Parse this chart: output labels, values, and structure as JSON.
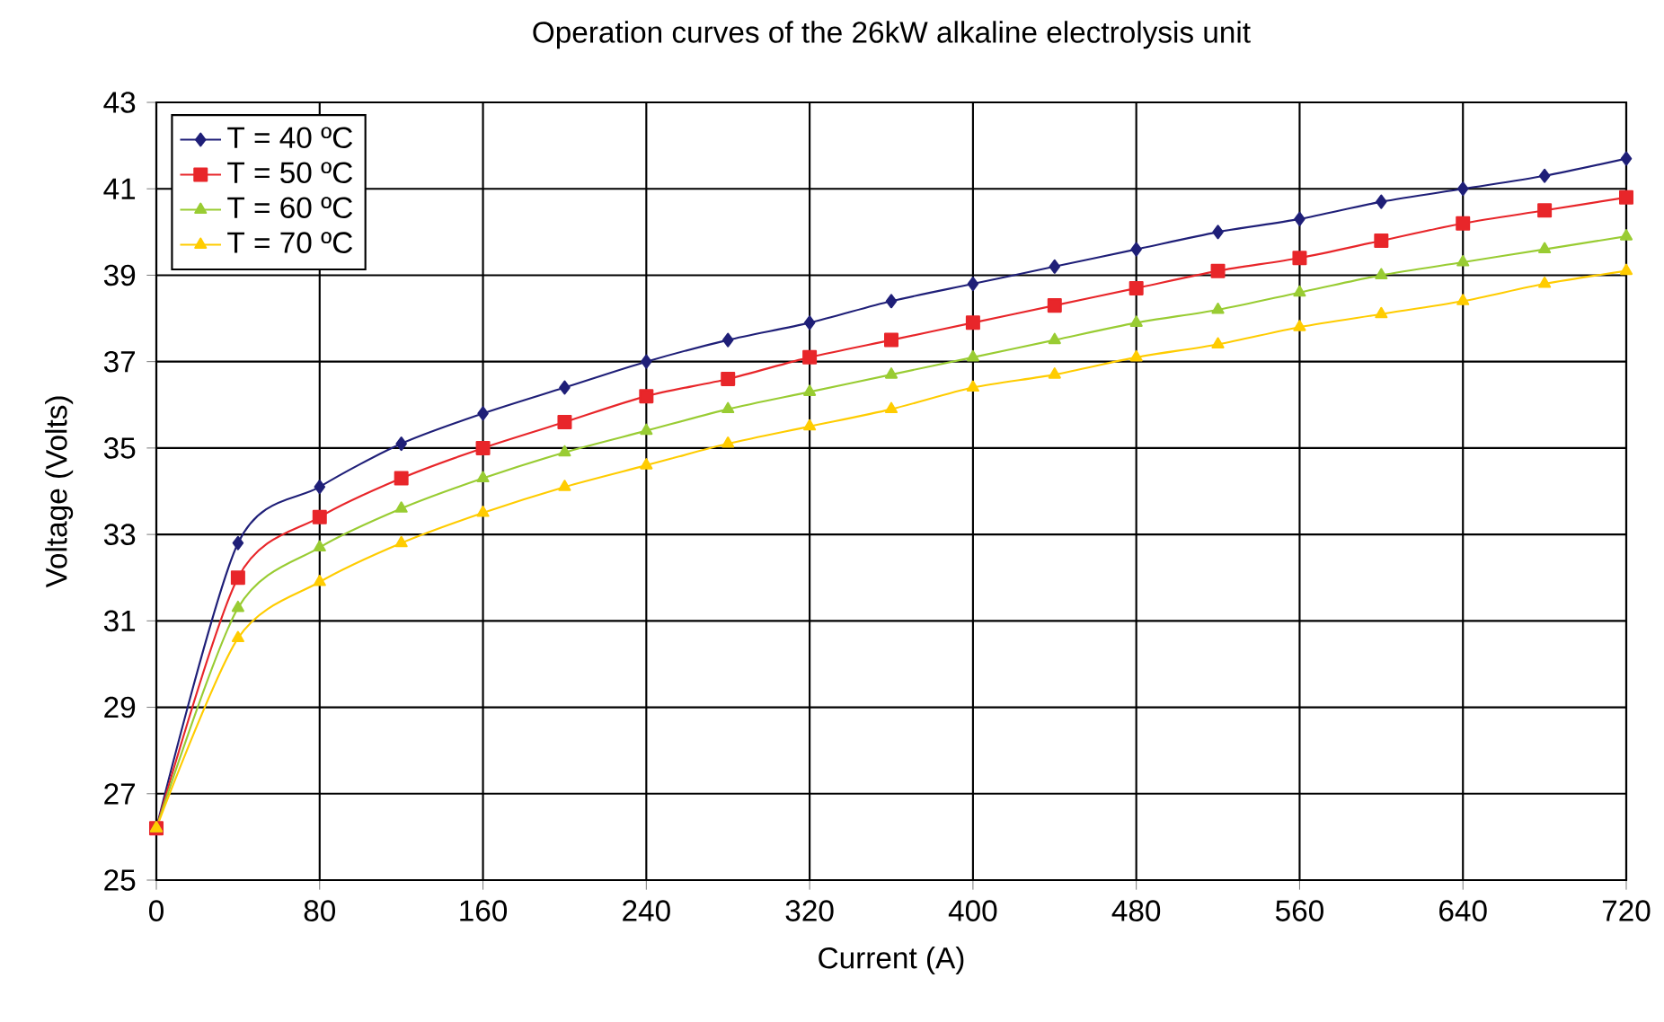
{
  "chart_data": {
    "type": "line",
    "title": "Operation curves of the 26kW alkaline electrolysis unit",
    "xlabel": "Current (A)",
    "ylabel": "Voltage (Volts)",
    "x": [
      0,
      40,
      80,
      120,
      160,
      200,
      240,
      280,
      320,
      360,
      400,
      440,
      480,
      520,
      560,
      600,
      640,
      680,
      720
    ],
    "series": [
      {
        "name": "T = 40 ºC",
        "color": "#1f1f78",
        "marker": "diamond",
        "values": [
          26.2,
          32.8,
          34.1,
          35.1,
          35.8,
          36.4,
          37.0,
          37.5,
          37.9,
          38.4,
          38.8,
          39.2,
          39.6,
          40.0,
          40.3,
          40.7,
          41.0,
          41.3,
          41.7
        ]
      },
      {
        "name": "T = 50 ºC",
        "color": "#e8262a",
        "marker": "square",
        "values": [
          26.2,
          32.0,
          33.4,
          34.3,
          35.0,
          35.6,
          36.2,
          36.6,
          37.1,
          37.5,
          37.9,
          38.3,
          38.7,
          39.1,
          39.4,
          39.8,
          40.2,
          40.5,
          40.8
        ]
      },
      {
        "name": "T = 60 ºC",
        "color": "#99cc33",
        "marker": "triangle",
        "values": [
          26.2,
          31.3,
          32.7,
          33.6,
          34.3,
          34.9,
          35.4,
          35.9,
          36.3,
          36.7,
          37.1,
          37.5,
          37.9,
          38.2,
          38.6,
          39.0,
          39.3,
          39.6,
          39.9
        ]
      },
      {
        "name": "T = 70 ºC",
        "color": "#ffcc00",
        "marker": "triangle",
        "values": [
          26.2,
          30.6,
          31.9,
          32.8,
          33.5,
          34.1,
          34.6,
          35.1,
          35.5,
          35.9,
          36.4,
          36.7,
          37.1,
          37.4,
          37.8,
          38.1,
          38.4,
          38.8,
          39.1
        ]
      }
    ],
    "xlim": [
      0,
      720
    ],
    "ylim": [
      25,
      43
    ],
    "xticks": [
      0,
      80,
      160,
      240,
      320,
      400,
      480,
      560,
      640,
      720
    ],
    "yticks": [
      25,
      27,
      29,
      31,
      33,
      35,
      37,
      39,
      41,
      43
    ],
    "grid": true,
    "legend": "top left",
    "line_style": "solid"
  }
}
